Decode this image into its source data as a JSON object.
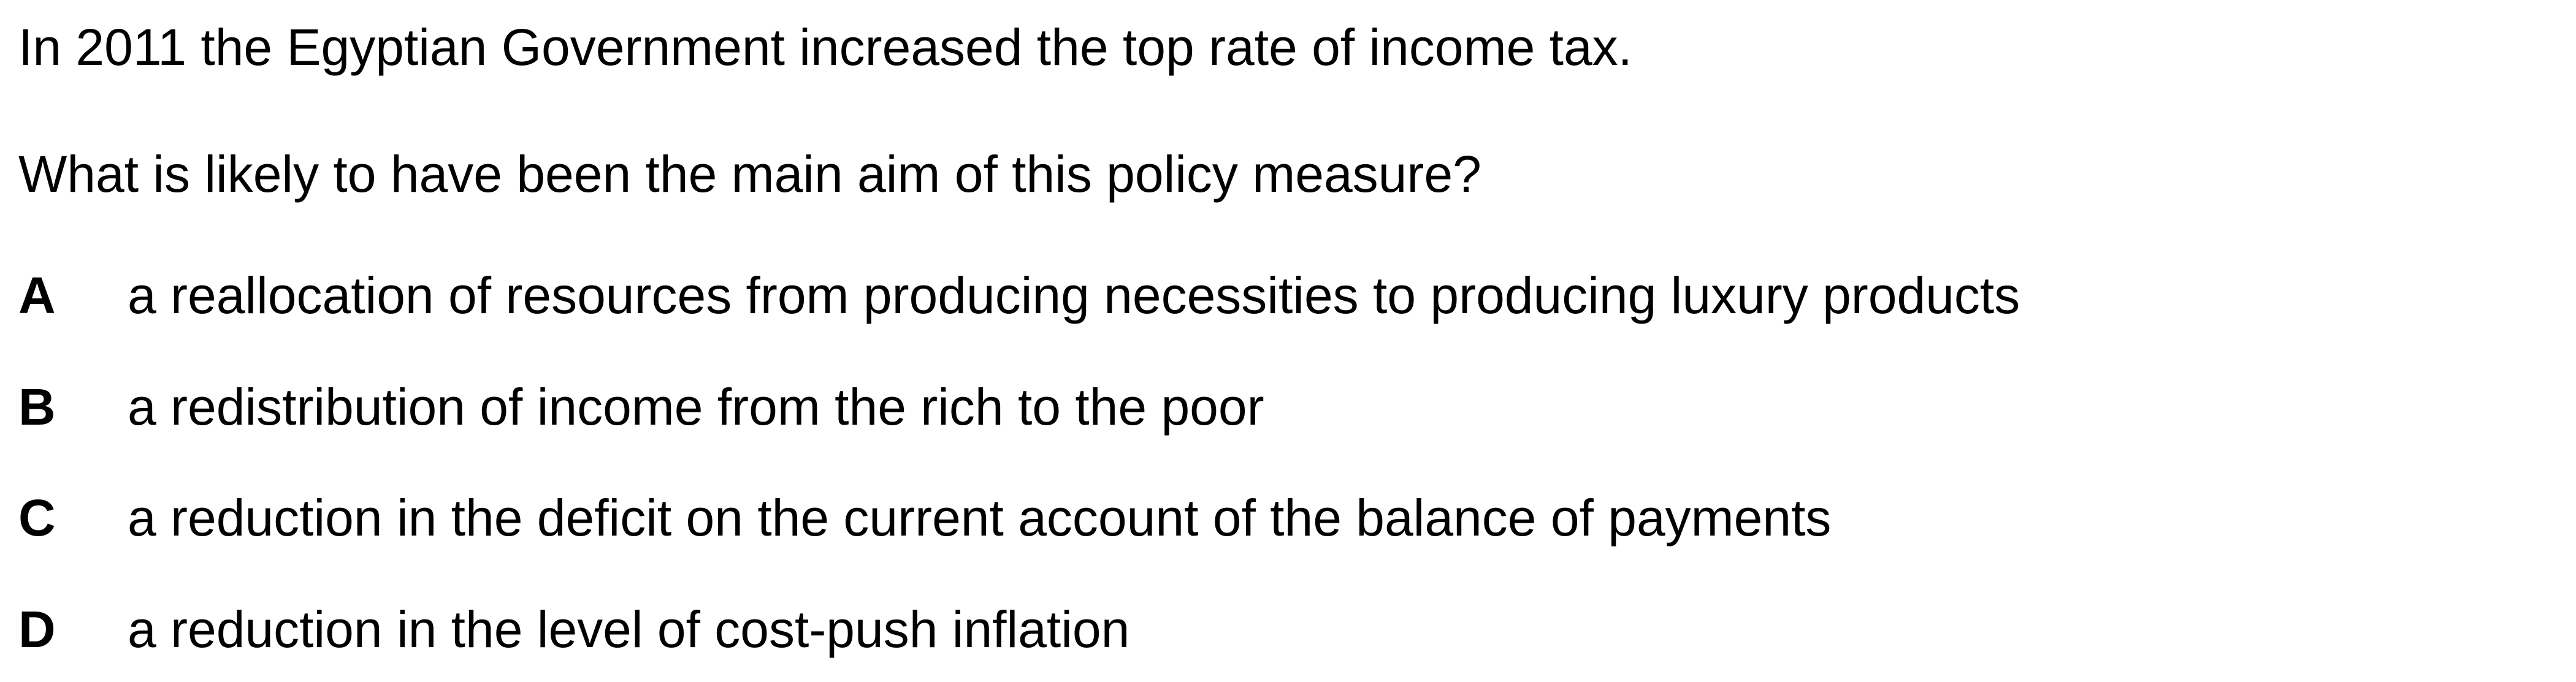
{
  "question": {
    "context": "In 2011 the Egyptian Government increased the top rate of income tax.",
    "prompt": "What is likely to have been the main aim of this policy measure?",
    "options": [
      {
        "letter": "A",
        "text": "a reallocation of resources from producing necessities to producing luxury products"
      },
      {
        "letter": "B",
        "text": "a redistribution of income from the rich to the poor"
      },
      {
        "letter": "C",
        "text": "a reduction in the deficit on the current account of the balance of payments"
      },
      {
        "letter": "D",
        "text": "a reduction in the level of cost-push inflation"
      }
    ]
  }
}
